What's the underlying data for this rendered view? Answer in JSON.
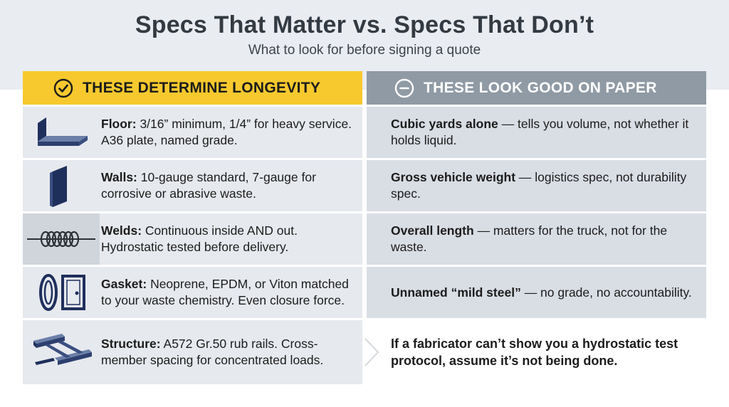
{
  "header": {
    "title": "Specs That Matter vs. Specs That Don’t",
    "subtitle": "What to look for before signing a quote"
  },
  "columns": {
    "left": {
      "heading": "THESE DETERMINE LONGEVITY",
      "icon": "check-circle-icon"
    },
    "right": {
      "heading": "THESE LOOK GOOD ON PAPER",
      "icon": "minus-circle-icon"
    }
  },
  "matters": [
    {
      "icon": "floor-plate-icon",
      "label": "Floor:",
      "text": " 3/16” minimum, 1/4” for heavy service. A36 plate, named grade."
    },
    {
      "icon": "wall-panel-icon",
      "label": "Walls:",
      "text": " 10-gauge standard, 7-gauge for corrosive or abrasive waste."
    },
    {
      "icon": "weld-bead-icon",
      "label": "Welds:",
      "text": " Continuous inside AND out. Hydrostatic tested before delivery."
    },
    {
      "icon": "gasket-door-icon",
      "label": "Gasket:",
      "text": " Neoprene, EPDM, or Viton matched to your waste chemistry. Even closure force."
    },
    {
      "icon": "steel-frame-icon",
      "label": "Structure:",
      "text": " A572 Gr.50 rub rails. Cross-member spacing for concentrated loads."
    }
  ],
  "paper": [
    {
      "label": "Cubic yards alone",
      "text": " — tells you volume, not whether it holds liquid."
    },
    {
      "label": "Gross vehicle weight",
      "text": " — logistics spec, not durability spec."
    },
    {
      "label": "Overall length",
      "text": " — matters for the truck, not for the waste."
    },
    {
      "label": "Unnamed “mild steel”",
      "text": " — no grade, no accountability."
    }
  ],
  "callout": "If a fabricator can’t show you a hydrostatic test protocol, assume it’s not being done.",
  "colors": {
    "accent_yellow": "#f7c92e",
    "header_gray": "#8f9aa4",
    "row_left": "#e6e9ee",
    "row_right": "#d9dde4",
    "icon_navy": "#1f2f5c"
  }
}
